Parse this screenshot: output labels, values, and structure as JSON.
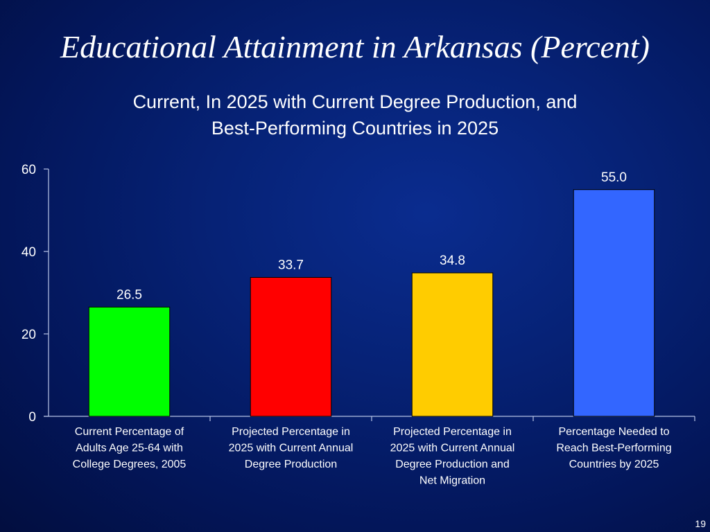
{
  "slide": {
    "title": "Educational Attainment in Arkansas (Percent)",
    "subtitle_lines": [
      "Current, In 2025 with Current Degree Production, and",
      "Best-Performing Countries in 2025"
    ],
    "page_number": "19"
  },
  "chart_data": {
    "type": "bar",
    "title": "Current, In 2025 with Current Degree Production, and Best-Performing Countries in 2025",
    "xlabel": "",
    "ylabel": "",
    "ylim": [
      0,
      60
    ],
    "yticks": [
      0,
      20,
      40,
      60
    ],
    "grid": false,
    "legend": "none",
    "categories": [
      [
        "Current Percentage of",
        "Adults Age 25-64 with",
        "College Degrees, 2005"
      ],
      [
        "Projected Percentage in",
        "2025 with Current Annual",
        "Degree Production"
      ],
      [
        "Projected Percentage in",
        "2025 with Current Annual",
        "Degree Production and",
        "Net Migration"
      ],
      [
        "Percentage Needed to",
        "Reach Best-Performing",
        "Countries by 2025"
      ]
    ],
    "values": [
      26.5,
      33.7,
      34.8,
      55.0
    ],
    "value_labels": [
      "26.5",
      "33.7",
      "34.8",
      "55.0"
    ],
    "bar_colors": [
      "#00ff00",
      "#ff0000",
      "#ffcc00",
      "#3366ff"
    ],
    "text_color": "#ffffff",
    "axis_color": "#b8c4e6"
  }
}
